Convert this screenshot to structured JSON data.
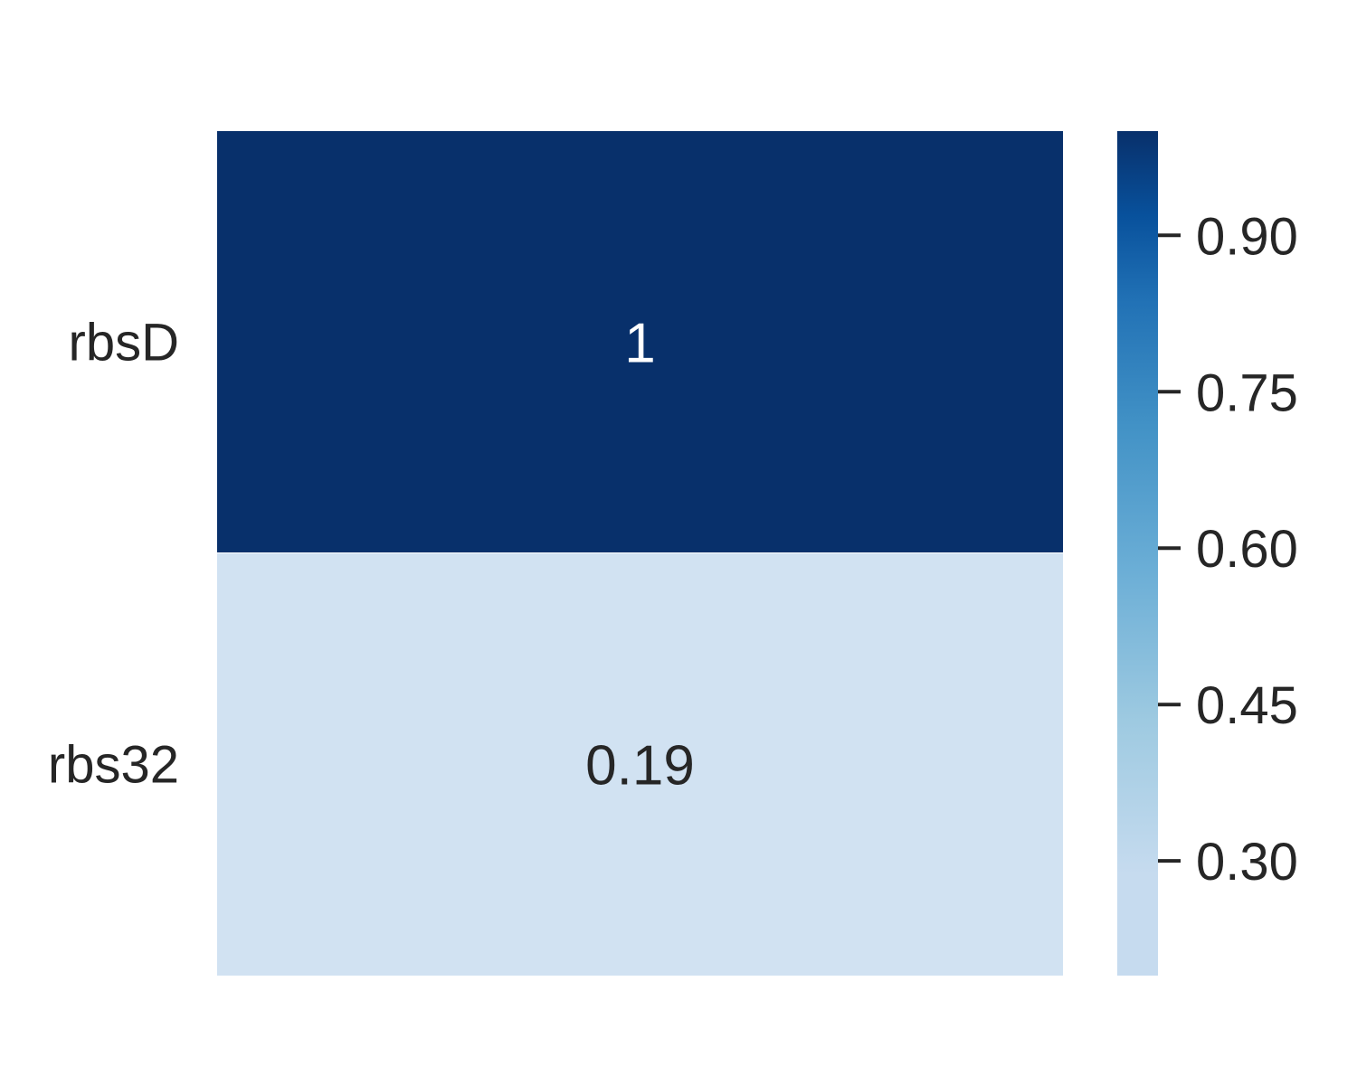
{
  "chart_data": {
    "type": "heatmap",
    "title": "",
    "xlabel": "",
    "ylabel": "",
    "rows": [
      "rbsD",
      "rbs32"
    ],
    "columns": [
      ""
    ],
    "values": [
      [
        1.0
      ],
      [
        0.19
      ]
    ],
    "annotations": [
      "1",
      "0.19"
    ],
    "colormap": "Blues",
    "colorbar": {
      "range": [
        0.19,
        1.0
      ],
      "ticks": [
        0.3,
        0.45,
        0.6,
        0.75,
        0.9
      ],
      "tick_labels": [
        "0.30",
        "0.45",
        "0.60",
        "0.75",
        "0.90"
      ]
    },
    "colors": {
      "low": "#c6dbef",
      "high": "#08306b",
      "cell_rbsD": "#08306b",
      "cell_rbs32": "#d1e2f2",
      "text_on_dark": "#ffffff",
      "text_on_light": "#262626"
    },
    "grid": false,
    "legend": "right"
  }
}
